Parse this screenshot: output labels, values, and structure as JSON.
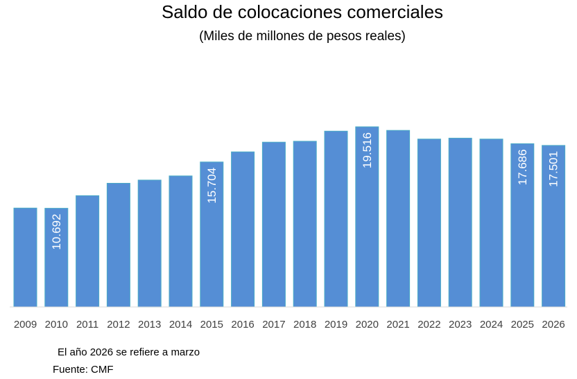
{
  "chart_data": {
    "type": "bar",
    "title": "Saldo de colocaciones comerciales",
    "subtitle": "(Miles de millones de pesos reales)",
    "categories": [
      "2009",
      "2010",
      "2011",
      "2012",
      "2013",
      "2014",
      "2015",
      "2016",
      "2017",
      "2018",
      "2019",
      "2020",
      "2021",
      "2022",
      "2023",
      "2024",
      "2025",
      "2026"
    ],
    "values": [
      10710,
      10692,
      12060,
      13400,
      13750,
      14200,
      15704,
      16800,
      17850,
      17950,
      19050,
      19516,
      19130,
      18190,
      18290,
      18190,
      17686,
      17501
    ],
    "data_labels": [
      {
        "index": 1,
        "text": "10.692"
      },
      {
        "index": 6,
        "text": "15.704"
      },
      {
        "index": 11,
        "text": "19.516"
      },
      {
        "index": 16,
        "text": "17.686"
      },
      {
        "index": 17,
        "text": "17.501"
      }
    ],
    "ylim": [
      0,
      25000
    ],
    "grid": false,
    "bar_color": "#558ed5",
    "bar_edge_color": "#4bacc6",
    "axis_color": "#d9d9d9"
  },
  "notes": {
    "line1": "El año 2026 se refiere a marzo",
    "line2": "Fuente: CMF"
  }
}
